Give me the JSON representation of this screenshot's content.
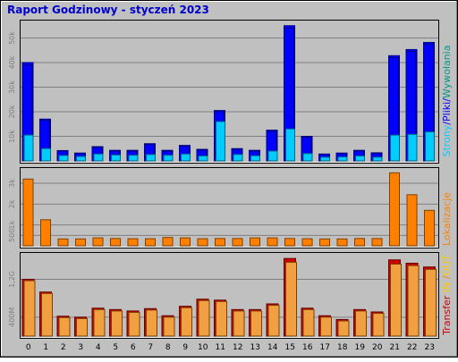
{
  "title": "Raport Godzinowy -  styczeń 2023",
  "colors": {
    "background": "#c0c0c0",
    "grid": "#808080",
    "title": "#0000cc",
    "strony": "#00ccff",
    "pliki": "#0000ff",
    "wywolania": "#009988",
    "lokalizacje": "#ff8000",
    "transfer_in": "#ffcc00",
    "transfer_out": "#f0a040",
    "transfer_total": "#cc0000"
  },
  "legends": {
    "top": [
      {
        "text": "Strony",
        "color": "#00ccff"
      },
      {
        "text": "/",
        "color": "#0000ff"
      },
      {
        "text": "Pliki",
        "color": "#0000ff"
      },
      {
        "text": "/",
        "color": "#0000ff"
      },
      {
        "text": "Wywołania",
        "color": "#009988"
      }
    ],
    "middle": [
      {
        "text": "Lokalizacje",
        "color": "#ff8000"
      }
    ],
    "bottom": [
      {
        "text": "Transfer",
        "color": "#cc0000"
      },
      {
        "text": " IN",
        "color": "#ffcc00"
      },
      {
        "text": " /",
        "color": "#ff8000"
      },
      {
        "text": "OUT",
        "color": "#ffcc00"
      }
    ]
  },
  "chart_data": [
    {
      "type": "bar",
      "panel": "top",
      "categories": [
        "0",
        "1",
        "2",
        "3",
        "4",
        "5",
        "6",
        "7",
        "8",
        "9",
        "10",
        "11",
        "12",
        "13",
        "14",
        "15",
        "16",
        "17",
        "18",
        "19",
        "20",
        "21",
        "22",
        "23"
      ],
      "yticks": [
        "10k",
        "20k",
        "30k",
        "40k",
        "50k"
      ],
      "ytick_values": [
        10000,
        20000,
        30000,
        40000,
        50000
      ],
      "ylim": [
        0,
        56000
      ],
      "series": [
        {
          "name": "Wywołania",
          "values": [
            40000,
            17000,
            4200,
            3200,
            5800,
            4300,
            4300,
            7000,
            4300,
            6300,
            4700,
            20500,
            5000,
            4300,
            12500,
            55000,
            10000,
            2800,
            3200,
            4300,
            3300,
            42800,
            45300,
            48200
          ]
        },
        {
          "name": "Pliki",
          "values": [
            39000,
            16500,
            4000,
            3000,
            5500,
            4000,
            4000,
            6700,
            4000,
            6000,
            4400,
            20000,
            4700,
            4000,
            12000,
            54000,
            9600,
            2600,
            3000,
            4000,
            3100,
            42000,
            44500,
            47500
          ]
        },
        {
          "name": "Strony",
          "values": [
            10500,
            5000,
            2200,
            1800,
            2800,
            2400,
            2300,
            2600,
            2300,
            2800,
            2000,
            16000,
            2600,
            2100,
            4000,
            13000,
            3000,
            1500,
            1600,
            2000,
            1500,
            10500,
            10800,
            11800
          ]
        }
      ]
    },
    {
      "type": "bar",
      "panel": "middle",
      "categories": [
        "0",
        "1",
        "2",
        "3",
        "4",
        "5",
        "6",
        "7",
        "8",
        "9",
        "10",
        "11",
        "12",
        "13",
        "14",
        "15",
        "16",
        "17",
        "18",
        "19",
        "20",
        "21",
        "22",
        "23"
      ],
      "yticks": [
        "500",
        "1k",
        "2k",
        "3k"
      ],
      "ytick_values": [
        500,
        1000,
        2000,
        3000
      ],
      "ylim": [
        0,
        3600
      ],
      "series": [
        {
          "name": "Lokalizacje",
          "values": [
            3200,
            1250,
            330,
            330,
            380,
            350,
            340,
            340,
            400,
            380,
            340,
            350,
            350,
            380,
            380,
            350,
            340,
            330,
            330,
            350,
            350,
            3500,
            2450,
            1700
          ]
        }
      ]
    },
    {
      "type": "bar",
      "panel": "bottom",
      "categories": [
        "0",
        "1",
        "2",
        "3",
        "4",
        "5",
        "6",
        "7",
        "8",
        "9",
        "10",
        "11",
        "12",
        "13",
        "14",
        "15",
        "16",
        "17",
        "18",
        "19",
        "20",
        "21",
        "22",
        "23"
      ],
      "yticks": [
        "400M",
        "1,2G"
      ],
      "ytick_values": [
        400,
        1200
      ],
      "ylim": [
        0,
        1700
      ],
      "series": [
        {
          "name": "Transfer",
          "values": [
            1200,
            930,
            420,
            400,
            590,
            560,
            530,
            580,
            430,
            630,
            780,
            760,
            560,
            560,
            680,
            1640,
            590,
            430,
            350,
            560,
            510,
            1610,
            1540,
            1460
          ]
        },
        {
          "name": "OUT",
          "values": [
            1170,
            900,
            390,
            370,
            560,
            530,
            500,
            550,
            400,
            600,
            750,
            730,
            530,
            530,
            650,
            1560,
            560,
            400,
            320,
            530,
            480,
            1520,
            1490,
            1410
          ]
        }
      ]
    }
  ]
}
